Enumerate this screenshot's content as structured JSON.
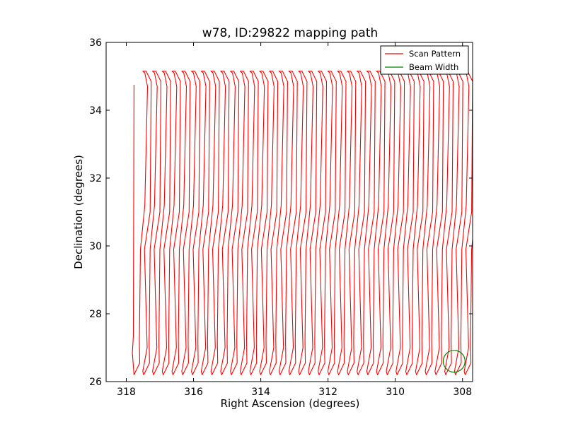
{
  "chart_data": {
    "type": "line",
    "title": "w78, ID:29822 mapping path",
    "xlabel": "Right Ascension (degrees)",
    "ylabel": "Declination (degrees)",
    "xlim": [
      318.6,
      307.7
    ],
    "ylim": [
      26,
      36
    ],
    "x_ticks": [
      318,
      316,
      314,
      312,
      310,
      308
    ],
    "y_ticks": [
      26,
      28,
      30,
      32,
      34,
      36
    ],
    "grid": false,
    "legend_position": "top-right",
    "legend": [
      {
        "label": "Scan Pattern",
        "color": "#ff0000"
      },
      {
        "label": "Beam Width",
        "color": "#008000"
      }
    ],
    "series": [
      {
        "name": "Scan Pattern",
        "color": "#ff0000",
        "scan": {
          "ra_start": 317.65,
          "ra_end": 307.8,
          "columns": 35,
          "dec_top": 35.15,
          "dec_bottom": 26.2,
          "first_leg": {
            "ra": 317.77,
            "dec_top": 34.75,
            "dec_bottom": 26.85
          }
        }
      },
      {
        "name": "Beam Width",
        "color": "#008000",
        "circle": {
          "ra_center": 308.25,
          "dec_center": 26.6,
          "radius": 0.32
        }
      }
    ]
  }
}
